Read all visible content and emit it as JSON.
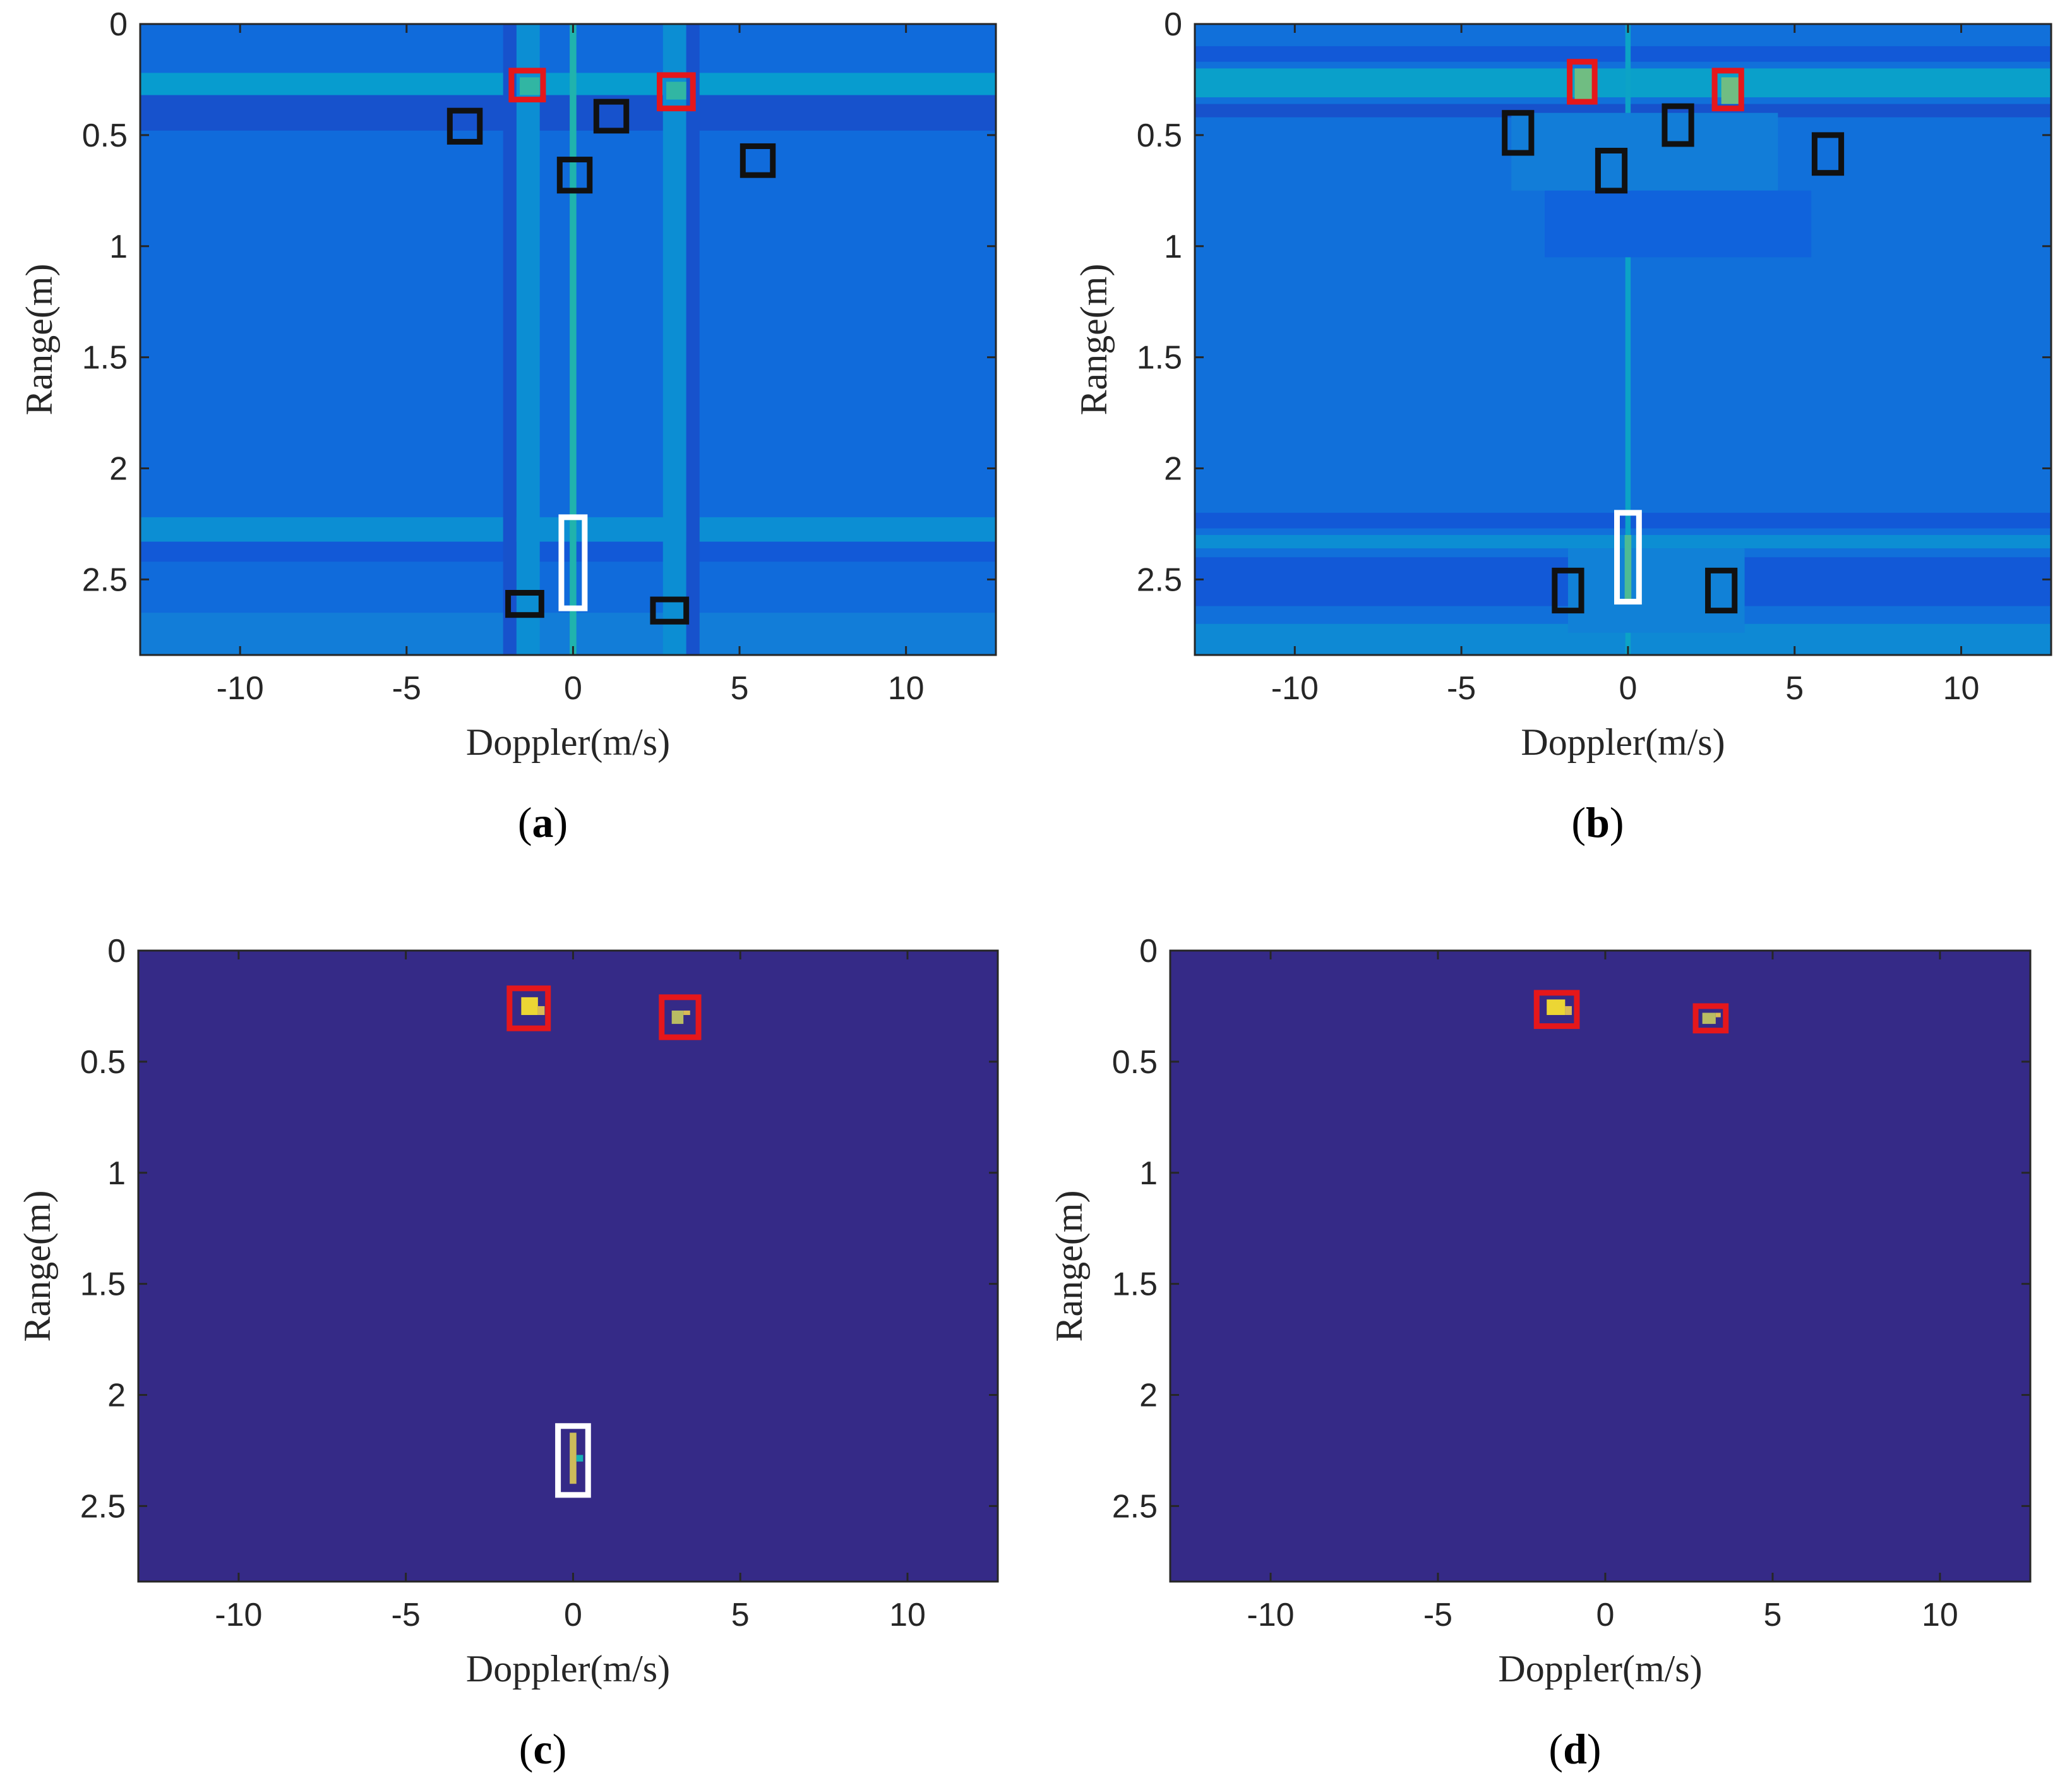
{
  "chart_data": [
    {
      "panel": "(a)",
      "panel_label_parts": [
        "(",
        "a",
        ")"
      ],
      "type": "heatmap",
      "xlabel": "Doppler(m/s)",
      "ylabel": "Range(m)",
      "xlim": [
        -13,
        12.7
      ],
      "ylim": [
        0,
        2.84
      ],
      "y_reversed": true,
      "xticks": [
        -10,
        -5,
        0,
        5,
        10
      ],
      "xtick_labels": [
        "-10",
        "-5",
        "0",
        "5",
        "10"
      ],
      "yticks": [
        0,
        0.5,
        1,
        1.5,
        2,
        2.5
      ],
      "ytick_labels": [
        "0",
        "0.5",
        "1",
        "1.5",
        "2",
        "2.5"
      ],
      "colormap": "parula",
      "background_level": 0.22,
      "features": [
        {
          "kind": "row-band",
          "y0": 0.22,
          "y1": 0.32,
          "level": 0.45
        },
        {
          "kind": "row-band",
          "y0": 0.32,
          "y1": 0.48,
          "level": 0.12
        },
        {
          "kind": "row-band",
          "y0": 2.22,
          "y1": 2.33,
          "level": 0.38
        },
        {
          "kind": "row-band",
          "y0": 2.33,
          "y1": 2.42,
          "level": 0.14
        },
        {
          "kind": "row-band",
          "y0": 2.65,
          "y1": 2.84,
          "level": 0.3
        },
        {
          "kind": "col-band",
          "x0": -1.7,
          "x1": -1.0,
          "level": 0.38
        },
        {
          "kind": "col-band",
          "x0": 2.7,
          "x1": 3.4,
          "level": 0.38
        },
        {
          "kind": "col-band",
          "x0": -0.1,
          "x1": 0.1,
          "level": 0.62
        },
        {
          "kind": "col-band",
          "x0": -2.1,
          "x1": -1.7,
          "level": 0.12
        },
        {
          "kind": "col-band",
          "x0": 3.4,
          "x1": 3.8,
          "level": 0.12
        },
        {
          "kind": "spot",
          "x0": -1.6,
          "x1": -1.0,
          "y0": 0.24,
          "y1": 0.32,
          "level": 0.65
        },
        {
          "kind": "spot",
          "x0": 2.8,
          "x1": 3.4,
          "y0": 0.26,
          "y1": 0.34,
          "level": 0.65
        }
      ],
      "markers": [
        {
          "color": "#e5171b",
          "x0": -1.85,
          "x1": -0.9,
          "y0": 0.21,
          "y1": 0.34
        },
        {
          "color": "#e5171b",
          "x0": 2.6,
          "x1": 3.6,
          "y0": 0.23,
          "y1": 0.38
        },
        {
          "color": "#111111",
          "x0": -3.7,
          "x1": -2.8,
          "y0": 0.39,
          "y1": 0.53
        },
        {
          "color": "#111111",
          "x0": 0.7,
          "x1": 1.6,
          "y0": 0.35,
          "y1": 0.48
        },
        {
          "color": "#111111",
          "x0": -0.4,
          "x1": 0.5,
          "y0": 0.61,
          "y1": 0.75
        },
        {
          "color": "#111111",
          "x0": 5.1,
          "x1": 6.0,
          "y0": 0.55,
          "y1": 0.68
        },
        {
          "color": "#111111",
          "x0": -1.95,
          "x1": -0.95,
          "y0": 2.56,
          "y1": 2.66
        },
        {
          "color": "#111111",
          "x0": 2.4,
          "x1": 3.4,
          "y0": 2.59,
          "y1": 2.69
        },
        {
          "color": "#ffffff",
          "x0": -0.35,
          "x1": 0.35,
          "y0": 2.22,
          "y1": 2.63
        }
      ]
    },
    {
      "panel": "(b)",
      "panel_label_parts": [
        "(",
        "b",
        ")"
      ],
      "type": "heatmap",
      "xlabel": "Doppler(m/s)",
      "ylabel": "Range(m)",
      "xlim": [
        -13,
        12.7
      ],
      "ylim": [
        0,
        2.84
      ],
      "y_reversed": true,
      "xticks": [
        -10,
        -5,
        0,
        5,
        10
      ],
      "xtick_labels": [
        "-10",
        "-5",
        "0",
        "5",
        "10"
      ],
      "yticks": [
        0,
        0.5,
        1,
        1.5,
        2,
        2.5
      ],
      "ytick_labels": [
        "0",
        "0.5",
        "1",
        "1.5",
        "2",
        "2.5"
      ],
      "colormap": "parula",
      "background_level": 0.24,
      "features": [
        {
          "kind": "row-band",
          "y0": 0.1,
          "y1": 0.17,
          "level": 0.14
        },
        {
          "kind": "row-band",
          "y0": 0.2,
          "y1": 0.33,
          "level": 0.48
        },
        {
          "kind": "row-band",
          "y0": 0.36,
          "y1": 0.42,
          "level": 0.12
        },
        {
          "kind": "row-band",
          "y0": 2.2,
          "y1": 2.27,
          "level": 0.14
        },
        {
          "kind": "row-band",
          "y0": 2.3,
          "y1": 2.36,
          "level": 0.38
        },
        {
          "kind": "row-band",
          "y0": 2.4,
          "y1": 2.62,
          "level": 0.14
        },
        {
          "kind": "row-band",
          "y0": 2.7,
          "y1": 2.84,
          "level": 0.36
        },
        {
          "kind": "col-band",
          "x0": -0.08,
          "x1": 0.08,
          "level": 0.5
        },
        {
          "kind": "spot",
          "x0": -3.5,
          "x1": 4.5,
          "y0": 0.4,
          "y1": 0.75,
          "level": 0.3
        },
        {
          "kind": "spot",
          "x0": -2.5,
          "x1": 5.5,
          "y0": 0.75,
          "y1": 1.05,
          "level": 0.18
        },
        {
          "kind": "spot",
          "x0": -1.8,
          "x1": 3.5,
          "y0": 2.36,
          "y1": 2.74,
          "level": 0.32
        },
        {
          "kind": "spot",
          "x0": -1.6,
          "x1": -1.0,
          "y0": 0.2,
          "y1": 0.34,
          "level": 0.75
        },
        {
          "kind": "spot",
          "x0": 2.8,
          "x1": 3.4,
          "y0": 0.24,
          "y1": 0.36,
          "level": 0.75
        },
        {
          "kind": "spot",
          "x0": -0.1,
          "x1": 0.1,
          "y0": 2.3,
          "y1": 2.6,
          "level": 0.7
        }
      ],
      "markers": [
        {
          "color": "#e5171b",
          "x0": -1.75,
          "x1": -1.0,
          "y0": 0.17,
          "y1": 0.35
        },
        {
          "color": "#e5171b",
          "x0": 2.6,
          "x1": 3.4,
          "y0": 0.21,
          "y1": 0.38
        },
        {
          "color": "#111111",
          "x0": -3.7,
          "x1": -2.9,
          "y0": 0.4,
          "y1": 0.58
        },
        {
          "color": "#111111",
          "x0": 1.1,
          "x1": 1.9,
          "y0": 0.37,
          "y1": 0.54
        },
        {
          "color": "#111111",
          "x0": -0.9,
          "x1": -0.1,
          "y0": 0.57,
          "y1": 0.75
        },
        {
          "color": "#111111",
          "x0": 5.6,
          "x1": 6.4,
          "y0": 0.5,
          "y1": 0.67
        },
        {
          "color": "#111111",
          "x0": -2.2,
          "x1": -1.4,
          "y0": 2.46,
          "y1": 2.64
        },
        {
          "color": "#111111",
          "x0": 2.4,
          "x1": 3.2,
          "y0": 2.46,
          "y1": 2.64
        },
        {
          "color": "#ffffff",
          "x0": -0.33,
          "x1": 0.33,
          "y0": 2.2,
          "y1": 2.6
        }
      ]
    },
    {
      "panel": "(c)",
      "panel_label_parts": [
        "(",
        "c",
        ")"
      ],
      "type": "heatmap",
      "xlabel": "Doppler(m/s)",
      "ylabel": "Range(m)",
      "xlim": [
        -13,
        12.7
      ],
      "ylim": [
        0,
        2.84
      ],
      "y_reversed": true,
      "xticks": [
        -10,
        -5,
        0,
        5,
        10
      ],
      "xtick_labels": [
        "-10",
        "-5",
        "0",
        "5",
        "10"
      ],
      "yticks": [
        0,
        0.5,
        1,
        1.5,
        2,
        2.5
      ],
      "ytick_labels": [
        "0",
        "0.5",
        "1",
        "1.5",
        "2",
        "2.5"
      ],
      "colormap": "parula",
      "background_level": 0.0,
      "features": [
        {
          "kind": "spot",
          "x0": -1.55,
          "x1": -1.05,
          "y0": 0.21,
          "y1": 0.29,
          "level": 0.95
        },
        {
          "kind": "spot",
          "x0": -1.05,
          "x1": -0.85,
          "y0": 0.25,
          "y1": 0.29,
          "level": 0.9
        },
        {
          "kind": "spot",
          "x0": 2.95,
          "x1": 3.3,
          "y0": 0.27,
          "y1": 0.33,
          "level": 0.85
        },
        {
          "kind": "spot",
          "x0": 3.3,
          "x1": 3.5,
          "y0": 0.27,
          "y1": 0.29,
          "level": 0.9
        },
        {
          "kind": "spot",
          "x0": -0.1,
          "x1": 0.1,
          "y0": 2.17,
          "y1": 2.4,
          "level": 0.88
        },
        {
          "kind": "spot",
          "x0": 0.1,
          "x1": 0.3,
          "y0": 2.27,
          "y1": 2.3,
          "level": 0.6
        }
      ],
      "markers": [
        {
          "color": "#e5171b",
          "x0": -1.9,
          "x1": -0.75,
          "y0": 0.17,
          "y1": 0.35
        },
        {
          "color": "#e5171b",
          "x0": 2.65,
          "x1": 3.75,
          "y0": 0.21,
          "y1": 0.39
        },
        {
          "color": "#ffffff",
          "x0": -0.45,
          "x1": 0.45,
          "y0": 2.14,
          "y1": 2.45
        }
      ]
    },
    {
      "panel": "(d)",
      "panel_label_parts": [
        "(",
        "d",
        ")"
      ],
      "type": "heatmap",
      "xlabel": "Doppler(m/s)",
      "ylabel": "Range(m)",
      "xlim": [
        -13,
        12.7
      ],
      "ylim": [
        0,
        2.84
      ],
      "y_reversed": true,
      "xticks": [
        -10,
        -5,
        0,
        5,
        10
      ],
      "xtick_labels": [
        "-10",
        "-5",
        "0",
        "5",
        "10"
      ],
      "yticks": [
        0,
        0.5,
        1,
        1.5,
        2,
        2.5
      ],
      "ytick_labels": [
        "0",
        "0.5",
        "1",
        "1.5",
        "2",
        "2.5"
      ],
      "colormap": "parula",
      "background_level": 0.0,
      "features": [
        {
          "kind": "spot",
          "x0": -1.75,
          "x1": -1.2,
          "y0": 0.22,
          "y1": 0.29,
          "level": 0.95
        },
        {
          "kind": "spot",
          "x0": -1.2,
          "x1": -1.0,
          "y0": 0.25,
          "y1": 0.29,
          "level": 0.9
        },
        {
          "kind": "spot",
          "x0": 2.9,
          "x1": 3.3,
          "y0": 0.28,
          "y1": 0.33,
          "level": 0.85
        },
        {
          "kind": "spot",
          "x0": 3.3,
          "x1": 3.45,
          "y0": 0.28,
          "y1": 0.3,
          "level": 0.9
        }
      ],
      "markers": [
        {
          "color": "#e5171b",
          "x0": -2.05,
          "x1": -0.85,
          "y0": 0.19,
          "y1": 0.34
        },
        {
          "color": "#e5171b",
          "x0": 2.7,
          "x1": 3.6,
          "y0": 0.25,
          "y1": 0.36
        }
      ]
    }
  ]
}
